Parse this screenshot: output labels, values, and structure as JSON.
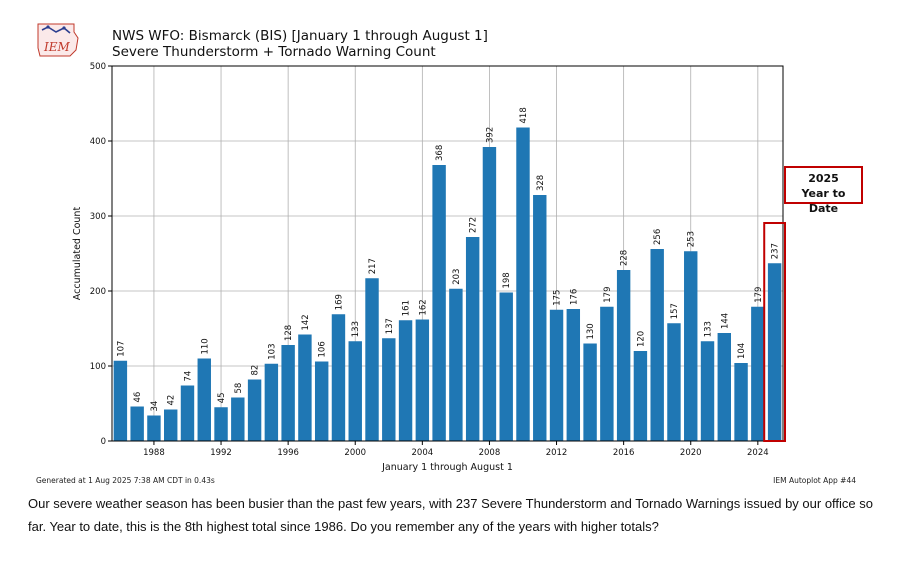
{
  "logo": {
    "text": "IEM"
  },
  "header": {
    "title_line1": "NWS WFO: Bismarck (BIS) [January 1 through August 1]",
    "title_line2": "Severe Thunderstorm + Tornado Warning Count"
  },
  "chart_data": {
    "type": "bar",
    "xlabel": "January 1 through August 1",
    "ylabel": "Accumulated Count",
    "ylim": [
      0,
      500
    ],
    "yticks": [
      0,
      100,
      200,
      300,
      400,
      500
    ],
    "xticks": [
      1988,
      1992,
      1996,
      2000,
      2004,
      2008,
      2012,
      2016,
      2020,
      2024
    ],
    "grid": true,
    "bar_color": "#1f77b4",
    "highlight_color": "#c00000",
    "x": [
      1986,
      1987,
      1988,
      1989,
      1990,
      1991,
      1992,
      1993,
      1994,
      1995,
      1996,
      1997,
      1998,
      1999,
      2000,
      2001,
      2002,
      2003,
      2004,
      2005,
      2006,
      2007,
      2008,
      2009,
      2010,
      2011,
      2012,
      2013,
      2014,
      2015,
      2016,
      2017,
      2018,
      2019,
      2020,
      2021,
      2022,
      2023,
      2024,
      2025
    ],
    "values": [
      107,
      46,
      34,
      42,
      74,
      110,
      45,
      58,
      82,
      103,
      128,
      142,
      106,
      169,
      133,
      217,
      137,
      161,
      162,
      368,
      203,
      272,
      392,
      198,
      418,
      328,
      175,
      176,
      130,
      179,
      228,
      120,
      256,
      157,
      253,
      133,
      144,
      104,
      179,
      237
    ],
    "highlight_year": 2025
  },
  "annotation": {
    "line1": "2025",
    "line2": "Year to Date"
  },
  "footer": {
    "generated": "Generated at 1 Aug 2025 7:38 AM CDT in 0.43s",
    "app": "IEM Autoplot App #44"
  },
  "caption": "Our severe weather season has been busier than the past few years, with 237 Severe Thunderstorm and Tornado Warnings issued by our office so far. Year to date, this is the 8th highest total since 1986. Do you remember any of the years with higher totals?"
}
